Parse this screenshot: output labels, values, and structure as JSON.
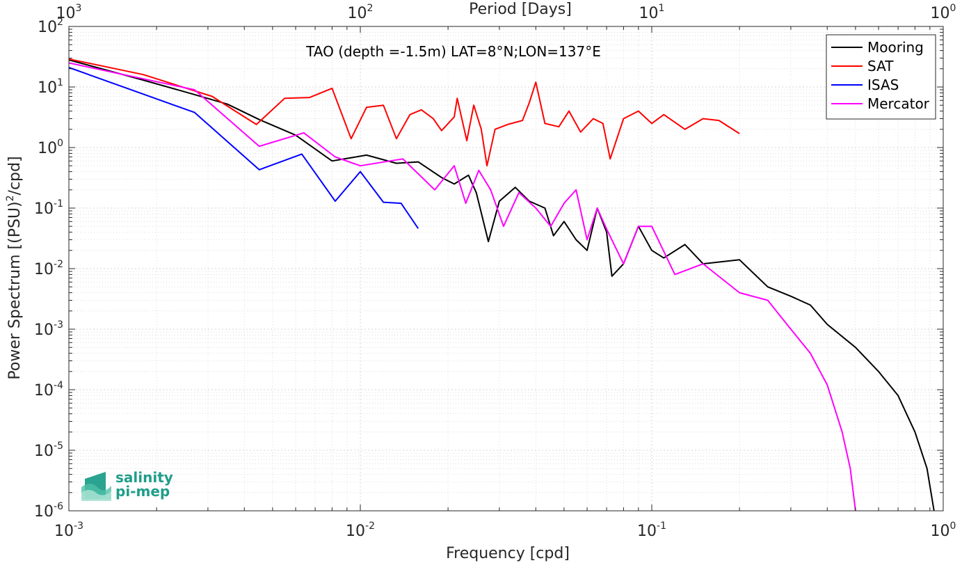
{
  "chart_data": {
    "type": "line",
    "title": "TAO (depth =-1.5m) LAT=8°N;LON=137°E",
    "xlabel": "Frequency [cpd]",
    "ylabel_main": "Power Spectrum [(PSU)",
    "ylabel_sup": "2",
    "ylabel_tail": "/cpd]",
    "x2label": "Period [Days]",
    "xscale": "log",
    "yscale": "log",
    "xlim": [
      0.001,
      1
    ],
    "ylim": [
      1e-06,
      100
    ],
    "grid": true,
    "legend_position": "top-right",
    "x_ticks": [
      {
        "base": "10",
        "exp": "-3",
        "value": 0.001
      },
      {
        "base": "10",
        "exp": "-2",
        "value": 0.01
      },
      {
        "base": "10",
        "exp": "-1",
        "value": 0.1
      },
      {
        "base": "10",
        "exp": "0",
        "value": 1
      }
    ],
    "x2_ticks": [
      {
        "base": "10",
        "exp": "3",
        "value": 1000
      },
      {
        "base": "10",
        "exp": "2",
        "value": 100
      },
      {
        "base": "10",
        "exp": "1",
        "value": 10
      },
      {
        "base": "10",
        "exp": "0",
        "value": 1
      }
    ],
    "y_ticks": [
      {
        "base": "10",
        "exp": "2",
        "value": 100
      },
      {
        "base": "10",
        "exp": "1",
        "value": 10
      },
      {
        "base": "10",
        "exp": "0",
        "value": 1
      },
      {
        "base": "10",
        "exp": "-1",
        "value": 0.1
      },
      {
        "base": "10",
        "exp": "-2",
        "value": 0.01
      },
      {
        "base": "10",
        "exp": "-3",
        "value": 0.001
      },
      {
        "base": "10",
        "exp": "-4",
        "value": 0.0001
      },
      {
        "base": "10",
        "exp": "-5",
        "value": 1e-05
      },
      {
        "base": "10",
        "exp": "-6",
        "value": 1e-06
      }
    ],
    "series": [
      {
        "name": "Mooring",
        "color": "#000000",
        "points": [
          [
            0.001,
            28
          ],
          [
            0.0018,
            13
          ],
          [
            0.0027,
            7.5
          ],
          [
            0.0035,
            5.2
          ],
          [
            0.0045,
            2.9
          ],
          [
            0.006,
            1.6
          ],
          [
            0.008,
            0.6
          ],
          [
            0.0105,
            0.75
          ],
          [
            0.0133,
            0.55
          ],
          [
            0.0158,
            0.58
          ],
          [
            0.019,
            0.32
          ],
          [
            0.021,
            0.25
          ],
          [
            0.0235,
            0.35
          ],
          [
            0.025,
            0.18
          ],
          [
            0.0275,
            0.028
          ],
          [
            0.03,
            0.13
          ],
          [
            0.034,
            0.22
          ],
          [
            0.038,
            0.13
          ],
          [
            0.043,
            0.1
          ],
          [
            0.046,
            0.035
          ],
          [
            0.05,
            0.06
          ],
          [
            0.055,
            0.03
          ],
          [
            0.06,
            0.02
          ],
          [
            0.065,
            0.1
          ],
          [
            0.07,
            0.04
          ],
          [
            0.073,
            0.0075
          ],
          [
            0.08,
            0.012
          ],
          [
            0.09,
            0.05
          ],
          [
            0.1,
            0.02
          ],
          [
            0.11,
            0.015
          ],
          [
            0.13,
            0.025
          ],
          [
            0.15,
            0.012
          ],
          [
            0.2,
            0.014
          ],
          [
            0.25,
            0.005
          ],
          [
            0.3,
            0.0035
          ],
          [
            0.35,
            0.0025
          ],
          [
            0.4,
            0.0012
          ],
          [
            0.5,
            0.0005
          ],
          [
            0.6,
            0.0002
          ],
          [
            0.7,
            8e-05
          ],
          [
            0.8,
            2e-05
          ],
          [
            0.88,
            5e-06
          ],
          [
            0.93,
            1e-06
          ]
        ]
      },
      {
        "name": "SAT",
        "color": "#ff0000",
        "points": [
          [
            0.001,
            29
          ],
          [
            0.0018,
            16
          ],
          [
            0.0031,
            7
          ],
          [
            0.0044,
            2.4
          ],
          [
            0.0055,
            6.5
          ],
          [
            0.0067,
            6.7
          ],
          [
            0.008,
            9.5
          ],
          [
            0.0093,
            1.4
          ],
          [
            0.0105,
            4.6
          ],
          [
            0.012,
            5
          ],
          [
            0.0133,
            1.4
          ],
          [
            0.0148,
            3.5
          ],
          [
            0.0162,
            4.2
          ],
          [
            0.0178,
            3
          ],
          [
            0.019,
            1.9
          ],
          [
            0.021,
            3.2
          ],
          [
            0.0215,
            6.5
          ],
          [
            0.0232,
            1.3
          ],
          [
            0.0245,
            5
          ],
          [
            0.026,
            2
          ],
          [
            0.0272,
            0.5
          ],
          [
            0.029,
            2
          ],
          [
            0.032,
            2.4
          ],
          [
            0.036,
            2.8
          ],
          [
            0.038,
            5.5
          ],
          [
            0.04,
            12
          ],
          [
            0.043,
            2.5
          ],
          [
            0.048,
            2.2
          ],
          [
            0.052,
            4
          ],
          [
            0.057,
            1.8
          ],
          [
            0.063,
            3
          ],
          [
            0.068,
            2.5
          ],
          [
            0.072,
            0.65
          ],
          [
            0.08,
            3
          ],
          [
            0.09,
            4
          ],
          [
            0.1,
            2.5
          ],
          [
            0.11,
            3.5
          ],
          [
            0.13,
            2
          ],
          [
            0.15,
            3
          ],
          [
            0.17,
            2.8
          ],
          [
            0.2,
            1.7
          ]
        ]
      },
      {
        "name": "ISAS",
        "color": "#0000ff",
        "points": [
          [
            0.001,
            21
          ],
          [
            0.0027,
            3.8
          ],
          [
            0.0045,
            0.43
          ],
          [
            0.0063,
            0.78
          ],
          [
            0.0082,
            0.13
          ],
          [
            0.01,
            0.4
          ],
          [
            0.012,
            0.125
          ],
          [
            0.0138,
            0.12
          ],
          [
            0.0158,
            0.046
          ]
        ]
      },
      {
        "name": "Mercator",
        "color": "#ff00ff",
        "points": [
          [
            0.001,
            25
          ],
          [
            0.0027,
            9
          ],
          [
            0.0045,
            1.05
          ],
          [
            0.0064,
            1.75
          ],
          [
            0.0082,
            0.7
          ],
          [
            0.01,
            0.5
          ],
          [
            0.014,
            0.65
          ],
          [
            0.018,
            0.2
          ],
          [
            0.021,
            0.5
          ],
          [
            0.023,
            0.12
          ],
          [
            0.0255,
            0.42
          ],
          [
            0.028,
            0.2
          ],
          [
            0.031,
            0.05
          ],
          [
            0.035,
            0.18
          ],
          [
            0.04,
            0.1
          ],
          [
            0.045,
            0.05
          ],
          [
            0.05,
            0.12
          ],
          [
            0.055,
            0.2
          ],
          [
            0.06,
            0.03
          ],
          [
            0.065,
            0.1
          ],
          [
            0.07,
            0.045
          ],
          [
            0.08,
            0.012
          ],
          [
            0.09,
            0.05
          ],
          [
            0.1,
            0.05
          ],
          [
            0.12,
            0.008
          ],
          [
            0.15,
            0.012
          ],
          [
            0.2,
            0.004
          ],
          [
            0.25,
            0.003
          ],
          [
            0.3,
            0.001
          ],
          [
            0.35,
            0.0004
          ],
          [
            0.4,
            0.00012
          ],
          [
            0.45,
            2e-05
          ],
          [
            0.48,
            5e-06
          ],
          [
            0.5,
            1e-06
          ]
        ]
      }
    ]
  },
  "logo": {
    "line1": "salinity",
    "line2": "pi-mep"
  }
}
